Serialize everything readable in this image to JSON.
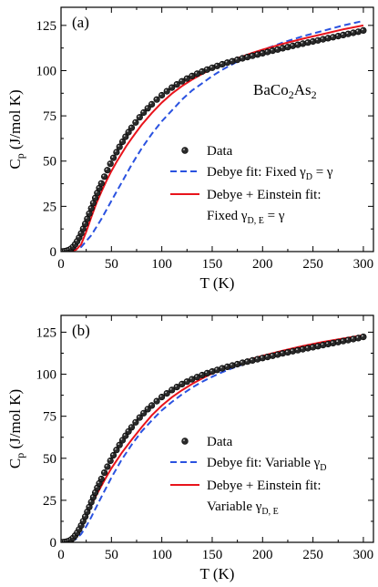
{
  "chart_data": [
    {
      "type": "scatter",
      "panel_label": "(a)",
      "annotation": {
        "base": "BaCo",
        "sub1": "2",
        "mid": "As",
        "sub2": "2"
      },
      "xlabel": "T (K)",
      "ylabel": {
        "base": "C",
        "sub": "p",
        "rest": " (J/mol K)"
      },
      "xlim": [
        0,
        310
      ],
      "ylim": [
        0,
        135
      ],
      "xticks": [
        0,
        50,
        100,
        150,
        200,
        250,
        300
      ],
      "yticks": [
        0,
        25,
        50,
        75,
        100,
        125
      ],
      "legend": {
        "placement": "lower-right",
        "entries": [
          {
            "kind": "marker",
            "label": "Data"
          },
          {
            "kind": "dash",
            "label": "Debye fit: Fixed γ",
            "sub": "D",
            "tail": " = γ"
          },
          {
            "kind": "solid",
            "label": "Debye + Einstein fit:"
          },
          {
            "kind": "none",
            "label": "Fixed γ",
            "sub": "D, E",
            "tail": " = γ"
          }
        ]
      },
      "series": [
        {
          "name": "Data",
          "kind": "marker",
          "color": "#000000",
          "x": [
            2,
            4,
            6,
            8,
            10,
            12,
            14,
            16,
            18,
            20,
            22,
            24,
            26,
            28,
            30,
            32,
            34,
            36,
            38,
            40,
            43,
            46,
            49,
            52,
            55,
            58,
            61,
            64,
            67,
            70,
            74,
            78,
            82,
            86,
            90,
            95,
            100,
            105,
            110,
            115,
            120,
            125,
            130,
            135,
            140,
            145,
            150,
            155,
            160,
            165,
            170,
            175,
            180,
            185,
            190,
            195,
            200,
            205,
            210,
            215,
            220,
            225,
            230,
            235,
            240,
            245,
            250,
            255,
            260,
            265,
            270,
            275,
            280,
            285,
            290,
            295,
            300
          ],
          "y": [
            0.1,
            0.2,
            0.5,
            0.9,
            1.6,
            2.6,
            4.0,
            5.7,
            7.7,
            10.0,
            12.6,
            15.3,
            18.1,
            21.0,
            23.9,
            26.8,
            29.6,
            32.4,
            35.1,
            37.7,
            41.4,
            45.0,
            48.5,
            51.8,
            54.9,
            57.9,
            60.7,
            63.4,
            66.0,
            68.4,
            71.4,
            74.2,
            76.8,
            79.2,
            81.4,
            84.0,
            86.4,
            88.6,
            90.6,
            92.4,
            94.1,
            95.6,
            97.0,
            98.3,
            99.5,
            100.6,
            101.6,
            102.6,
            103.5,
            104.4,
            105.2,
            106.0,
            106.8,
            107.5,
            108.2,
            108.9,
            109.6,
            110.3,
            111.0,
            111.7,
            112.4,
            113.0,
            113.7,
            114.3,
            114.9,
            115.5,
            116.1,
            116.7,
            117.3,
            117.9,
            118.5,
            119.1,
            119.7,
            120.3,
            120.9,
            121.5,
            122.2
          ]
        },
        {
          "name": "Debye fit: Fixed γD = γ",
          "kind": "dash",
          "color": "#2a52e0",
          "x": [
            0,
            10,
            20,
            30,
            40,
            50,
            60,
            70,
            80,
            90,
            100,
            110,
            120,
            130,
            140,
            150,
            160,
            170,
            180,
            190,
            200,
            220,
            240,
            260,
            280,
            300
          ],
          "y": [
            0,
            0.3,
            2.5,
            9,
            18,
            28,
            38,
            48,
            57,
            65,
            72,
            78,
            84,
            89,
            93,
            97,
            100.5,
            103.5,
            106.5,
            109,
            111.5,
            115.5,
            119,
            122,
            125,
            127.5
          ]
        },
        {
          "name": "Debye + Einstein fit: Fixed γD, E = γ",
          "kind": "solid",
          "color": "#e8141c",
          "x": [
            0,
            10,
            15,
            20,
            25,
            30,
            35,
            40,
            45,
            50,
            55,
            60,
            65,
            70,
            75,
            80,
            90,
            100,
            110,
            120,
            130,
            140,
            150,
            160,
            170,
            180,
            190,
            200,
            220,
            240,
            260,
            280,
            300
          ],
          "y": [
            0,
            0.2,
            1,
            4,
            11,
            19,
            26.5,
            33,
            39,
            44.5,
            49.5,
            54,
            58.5,
            62.5,
            66.3,
            70,
            76.5,
            82.3,
            87.3,
            91.5,
            95,
            98.2,
            101,
            103.5,
            105.8,
            107.8,
            109.8,
            111.6,
            114.8,
            117.6,
            120.2,
            122.8,
            125
          ]
        }
      ]
    },
    {
      "type": "scatter",
      "panel_label": "(b)",
      "xlabel": "T (K)",
      "ylabel": {
        "base": "C",
        "sub": "p",
        "rest": " (J/mol K)"
      },
      "xlim": [
        0,
        310
      ],
      "ylim": [
        0,
        135
      ],
      "xticks": [
        0,
        50,
        100,
        150,
        200,
        250,
        300
      ],
      "yticks": [
        0,
        25,
        50,
        75,
        100,
        125
      ],
      "legend": {
        "placement": "lower-right",
        "entries": [
          {
            "kind": "marker",
            "label": "Data"
          },
          {
            "kind": "dash",
            "label": "Debye fit: Variable γ",
            "sub": "D",
            "tail": ""
          },
          {
            "kind": "solid",
            "label": "Debye + Einstein fit:"
          },
          {
            "kind": "none",
            "label": "Variable γ",
            "sub": "D, E",
            "tail": ""
          }
        ]
      },
      "series": [
        {
          "name": "Data",
          "kind": "marker",
          "color": "#000000",
          "x": [
            2,
            4,
            6,
            8,
            10,
            12,
            14,
            16,
            18,
            20,
            22,
            24,
            26,
            28,
            30,
            32,
            34,
            36,
            38,
            40,
            43,
            46,
            49,
            52,
            55,
            58,
            61,
            64,
            67,
            70,
            74,
            78,
            82,
            86,
            90,
            95,
            100,
            105,
            110,
            115,
            120,
            125,
            130,
            135,
            140,
            145,
            150,
            155,
            160,
            165,
            170,
            175,
            180,
            185,
            190,
            195,
            200,
            205,
            210,
            215,
            220,
            225,
            230,
            235,
            240,
            245,
            250,
            255,
            260,
            265,
            270,
            275,
            280,
            285,
            290,
            295,
            300
          ],
          "y": [
            0.1,
            0.2,
            0.5,
            0.9,
            1.6,
            2.6,
            4.0,
            5.7,
            7.7,
            10.0,
            12.6,
            15.3,
            18.1,
            21.0,
            23.9,
            26.8,
            29.6,
            32.4,
            35.1,
            37.7,
            41.4,
            45.0,
            48.5,
            51.8,
            54.9,
            57.9,
            60.7,
            63.4,
            66.0,
            68.4,
            71.4,
            74.2,
            76.8,
            79.2,
            81.4,
            84.0,
            86.4,
            88.6,
            90.6,
            92.4,
            94.1,
            95.6,
            97.0,
            98.3,
            99.5,
            100.6,
            101.6,
            102.6,
            103.5,
            104.4,
            105.2,
            106.0,
            106.8,
            107.5,
            108.2,
            108.9,
            109.6,
            110.3,
            111.0,
            111.7,
            112.4,
            113.0,
            113.7,
            114.3,
            114.9,
            115.5,
            116.1,
            116.7,
            117.3,
            117.9,
            118.5,
            119.1,
            119.7,
            120.3,
            120.9,
            121.5,
            122.2
          ]
        },
        {
          "name": "Debye fit: Variable γD",
          "kind": "dash",
          "color": "#2a52e0",
          "x": [
            0,
            10,
            15,
            20,
            25,
            30,
            35,
            40,
            50,
            60,
            70,
            80,
            90,
            100,
            110,
            120,
            130,
            140,
            150,
            160,
            170,
            180,
            190,
            200,
            220,
            240,
            260,
            280,
            300
          ],
          "y": [
            0,
            0.5,
            2,
            5,
            9.5,
            15,
            21,
            27,
            38.5,
            49,
            58,
            66,
            72.5,
            78.5,
            83.5,
            88,
            92,
            95.5,
            98.5,
            101.2,
            103.6,
            105.8,
            107.8,
            109.6,
            112.8,
            115.6,
            118,
            120.4,
            122.5
          ]
        },
        {
          "name": "Debye + Einstein fit: Variable γD, E",
          "kind": "solid",
          "color": "#e8141c",
          "x": [
            0,
            10,
            15,
            20,
            25,
            30,
            35,
            40,
            45,
            50,
            60,
            70,
            80,
            90,
            100,
            110,
            120,
            130,
            140,
            150,
            160,
            170,
            180,
            190,
            200,
            220,
            240,
            260,
            280,
            300
          ],
          "y": [
            0,
            1.2,
            4.5,
            9.5,
            15.5,
            22,
            28,
            33.5,
            39,
            44,
            53,
            61,
            68.5,
            75.5,
            81.3,
            86.3,
            90.5,
            94.2,
            97.5,
            100.5,
            103,
            105.3,
            107.4,
            109.3,
            111,
            114,
            116.8,
            119.2,
            121.3,
            123.2
          ]
        }
      ]
    }
  ]
}
